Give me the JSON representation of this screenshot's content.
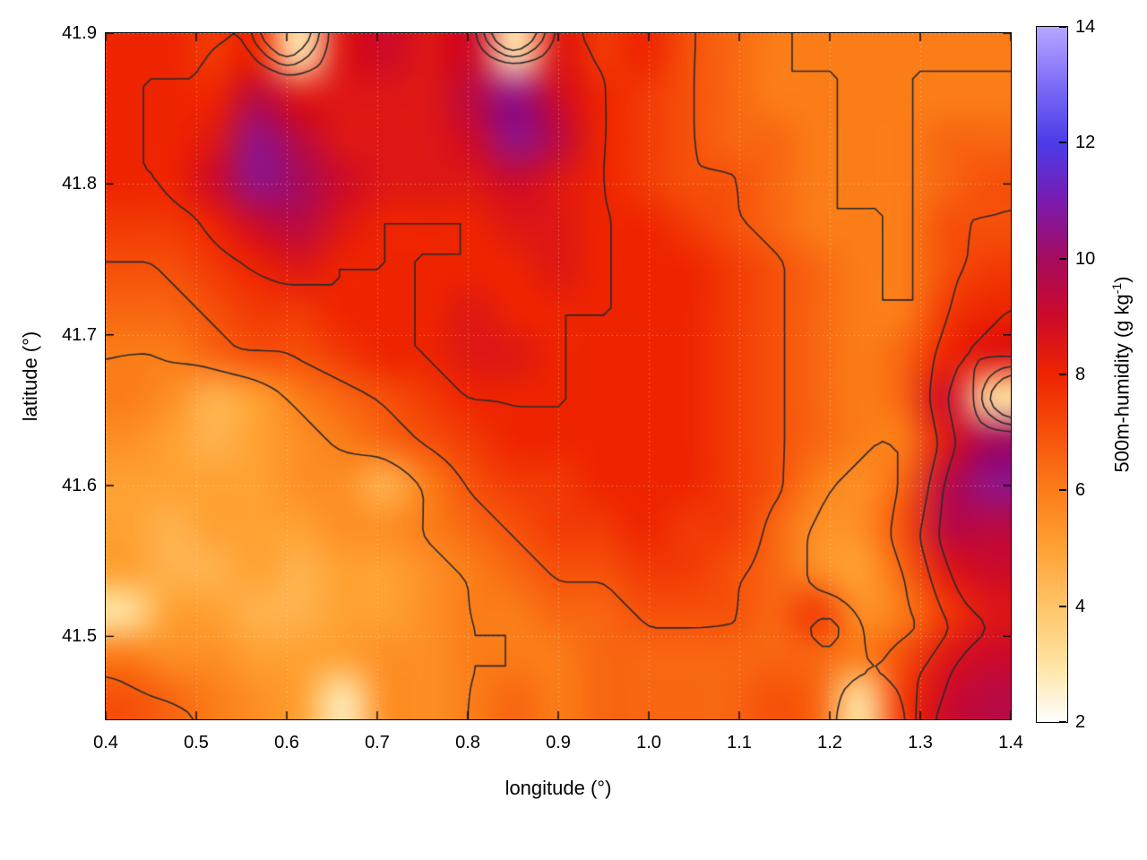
{
  "figure": {
    "xlabel": "longitude (°)",
    "ylabel": "latitude (°)",
    "colorbar_label_main": "500m-humidity (g kg",
    "colorbar_label_sup": "-1",
    "colorbar_label_close": ")"
  },
  "chart_data": {
    "type": "heatmap",
    "title": "",
    "xlabel": "longitude (°)",
    "ylabel": "latitude (°)",
    "zlabel": "500m-humidity (g kg-1)",
    "xlim": [
      0.4,
      1.4
    ],
    "ylim": [
      41.445,
      41.9
    ],
    "zlim": [
      2,
      14
    ],
    "grid": true,
    "legend_position": "colorbar-right",
    "x_ticks": [
      0.4,
      0.5,
      0.6,
      0.7,
      0.8,
      0.9,
      1.0,
      1.1,
      1.2,
      1.3,
      1.4
    ],
    "x_tick_labels": [
      "0.4",
      "0.5",
      "0.6",
      "0.7",
      "0.8",
      "0.9",
      "1.0",
      "1.1",
      "1.2",
      "1.3",
      "1.4"
    ],
    "y_ticks": [
      41.5,
      41.6,
      41.7,
      41.8,
      41.9
    ],
    "y_tick_labels": [
      "41.5",
      "41.6",
      "41.7",
      "41.8",
      "41.9"
    ],
    "z_ticks": [
      2,
      4,
      6,
      8,
      10,
      12,
      14
    ],
    "z_tick_labels": [
      "2",
      "4",
      "6",
      "8",
      "10",
      "12",
      "14"
    ],
    "lon": [
      0.4,
      0.45,
      0.5,
      0.55,
      0.6,
      0.65,
      0.7,
      0.75,
      0.8,
      0.85,
      0.9,
      0.95,
      1.0,
      1.05,
      1.1,
      1.15,
      1.2,
      1.25,
      1.3,
      1.35,
      1.4
    ],
    "lat_top_to_bottom": [
      41.9,
      41.87,
      41.84,
      41.81,
      41.78,
      41.75,
      41.72,
      41.69,
      41.66,
      41.63,
      41.6,
      41.57,
      41.54,
      41.51,
      41.48,
      41.45
    ],
    "values": [
      [
        8,
        8,
        7.5,
        8,
        2.8,
        8.5,
        9,
        8.5,
        9,
        2.8,
        8.5,
        7.5,
        8,
        7,
        6.5,
        6,
        6,
        6,
        6,
        6,
        6
      ],
      [
        8,
        8,
        8,
        9.5,
        8.5,
        8.5,
        8.5,
        8.5,
        9.5,
        10.5,
        9,
        8,
        7.5,
        7,
        6.5,
        6,
        6,
        6,
        6,
        6,
        6
      ],
      [
        8,
        8,
        8.5,
        10.5,
        9.5,
        8.5,
        8.5,
        8.5,
        9,
        10.5,
        9.5,
        8,
        7.5,
        7,
        6.5,
        6.5,
        6,
        6,
        6,
        6.5,
        6.5
      ],
      [
        8,
        8,
        9,
        10.5,
        10,
        9,
        8.5,
        8.5,
        8.5,
        9,
        8.5,
        8,
        7.5,
        7,
        7,
        6.5,
        6,
        6,
        6,
        6.5,
        7
      ],
      [
        7.5,
        7.5,
        8,
        9,
        9.5,
        8.5,
        8,
        8,
        8,
        8.5,
        8.5,
        8,
        8,
        7.5,
        7,
        6.5,
        6,
        6,
        6,
        7,
        7
      ],
      [
        7,
        7,
        7.5,
        8,
        8.5,
        8,
        8,
        8,
        8,
        8,
        8.5,
        8,
        8,
        8,
        7.5,
        7,
        6.5,
        6,
        6,
        7,
        7.5
      ],
      [
        6.5,
        6.5,
        7,
        7.5,
        7.5,
        8,
        8,
        8,
        8.5,
        8,
        8,
        8,
        8,
        8,
        7.5,
        7,
        6.5,
        6,
        6,
        7.5,
        8
      ],
      [
        6,
        6,
        6.5,
        7,
        7,
        7.5,
        8,
        8,
        8.5,
        8.5,
        8,
        8,
        8,
        8,
        7.5,
        7,
        6.5,
        6,
        6.5,
        8,
        8.5
      ],
      [
        6,
        5.5,
        4.5,
        5,
        6,
        6.5,
        7,
        7.5,
        8,
        8,
        8,
        8,
        8,
        8,
        7.5,
        7,
        6.5,
        6,
        6.5,
        9,
        3
      ],
      [
        5.5,
        5,
        4.5,
        5,
        5.5,
        6,
        6.5,
        7,
        7.5,
        8,
        8,
        8,
        8,
        8,
        7.5,
        7,
        6.5,
        6,
        6,
        8.5,
        10
      ],
      [
        5,
        5,
        5,
        5,
        5.5,
        5.5,
        4.5,
        6,
        7,
        7.5,
        7.5,
        8,
        8,
        8,
        7.5,
        7,
        6,
        5.5,
        6.5,
        9.5,
        10.5
      ],
      [
        5,
        4.5,
        5,
        5,
        5,
        5.5,
        5.5,
        6,
        6.5,
        7,
        7.5,
        7.5,
        8,
        7.5,
        7.5,
        6.5,
        5.5,
        5.5,
        7,
        9.5,
        9.5
      ],
      [
        5,
        4.5,
        4.5,
        5,
        4.5,
        5,
        5,
        5.5,
        6,
        6.5,
        7,
        7,
        7.5,
        7.5,
        7,
        6.5,
        5.5,
        5,
        6.5,
        8.5,
        9
      ],
      [
        3,
        5,
        5,
        4.5,
        4.5,
        5,
        5,
        5.5,
        6,
        6,
        6.5,
        6.5,
        7,
        7,
        7,
        6.5,
        7.5,
        5.5,
        6,
        7.5,
        8.5
      ],
      [
        6,
        5.5,
        5.5,
        5,
        5,
        5,
        5.5,
        5.5,
        6,
        6,
        6,
        6.5,
        6.5,
        6.5,
        6.5,
        6.5,
        6.5,
        6,
        7,
        8.5,
        9
      ],
      [
        7,
        6.5,
        6,
        5.5,
        5,
        2.8,
        5.5,
        5.5,
        6,
        6.5,
        6,
        6.5,
        6.5,
        6.5,
        6.5,
        7,
        6.5,
        3,
        7.5,
        9,
        9.5
      ]
    ],
    "contour_levels": [
      6,
      7,
      8
    ],
    "contour_color": "#2a2a2a",
    "palette": [
      {
        "v": 2,
        "c": "#ffffff"
      },
      {
        "v": 3,
        "c": "#ffe3a0"
      },
      {
        "v": 4,
        "c": "#ffc469"
      },
      {
        "v": 5,
        "c": "#ffa133"
      },
      {
        "v": 6,
        "c": "#fb7d18"
      },
      {
        "v": 7,
        "c": "#f6500a"
      },
      {
        "v": 8,
        "c": "#ee2400"
      },
      {
        "v": 9,
        "c": "#cd0a2a"
      },
      {
        "v": 10,
        "c": "#a50b5e"
      },
      {
        "v": 11,
        "c": "#7a1bb0"
      },
      {
        "v": 12,
        "c": "#4b3ce8"
      },
      {
        "v": 13,
        "c": "#7d6cf6"
      },
      {
        "v": 14,
        "c": "#b7a6ff"
      }
    ]
  }
}
